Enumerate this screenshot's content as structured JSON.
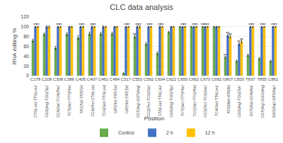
{
  "chart_data": {
    "type": "bar",
    "title": "CLC data analysis",
    "x_label": "Position",
    "y_label": "RNA editing %",
    "categories": [
      "C178",
      "C208",
      "C308",
      "C386",
      "C405",
      "C407",
      "C461",
      "C484",
      "C517",
      "C553",
      "C592",
      "C604",
      "C622",
      "C650",
      "C662",
      "C673",
      "C692",
      "G807",
      "C820",
      "T837",
      "T855",
      "C861"
    ],
    "sublabels": [
      "CTG(Leu)-TTG(Leu)",
      "CGG(Arg)-TGG(Trp)",
      "CCA(Ser)-TCA(Phe)",
      "TCT(Ser)-TTT(Phe)",
      "TAC(Tyr)-TAT(Tyr)",
      "CCA(Pro)-CTA(Leu)",
      "TCG(Ser)-TTG(Leu)",
      "CAT(His)-TAT(Tyr)",
      "CAT(His)-TAT(Tyr)",
      "CGT(Arg)-GGT(Ang)",
      "CCG(Pro)-TCG(Ser)",
      "CTA(Leu)-TTA(Leu)",
      "CGG(Arg)-TGG(Trp)",
      "TCT(Ser)-TTT(Phe)",
      "TCC(Ser)-TTC(Phe)",
      "CCG(Pro)-TCG(Ser)",
      "TCA(Ser)-TTA(Leu)",
      "ATG(Met)-ATA(Ile)",
      "CGG(Arg)-TGG(Tyr)",
      "GCT(Ala)-GCA(Ala)",
      "CGT(Arg)-GGC(Ang)",
      "GAC(Asp)-GAT(Asp)"
    ],
    "series": [
      {
        "name": "Control",
        "color": "#6aaa4b",
        "values": [
          72,
          85,
          57,
          85,
          78,
          86,
          86,
          86,
          5,
          80,
          65,
          46,
          89,
          100,
          100,
          100,
          100,
          38,
          30,
          42,
          35,
          30
        ],
        "errors": [
          3,
          2,
          3,
          3,
          4,
          3,
          3,
          3,
          1,
          3,
          3,
          3,
          2,
          1,
          1,
          1,
          1,
          2,
          2,
          2,
          2,
          2
        ],
        "annotations": [
          null,
          null,
          null,
          null,
          null,
          null,
          null,
          null,
          null,
          "**",
          null,
          null,
          null,
          null,
          null,
          "**",
          null,
          "**",
          null,
          null,
          null,
          null
        ]
      },
      {
        "name": "2 h",
        "color": "#4472c4",
        "values": [
          100,
          100,
          100,
          100,
          100,
          100,
          100,
          100,
          100,
          100,
          100,
          100,
          100,
          100,
          100,
          100,
          100,
          82,
          65,
          100,
          100,
          100
        ],
        "errors": [
          1,
          2,
          1,
          1,
          1,
          2,
          2,
          1,
          1,
          2,
          1,
          2,
          1,
          1,
          1,
          1,
          1,
          3,
          3,
          1,
          1,
          1
        ],
        "annotations": [
          "**",
          null,
          "**",
          null,
          "**",
          "**",
          null,
          null,
          "**",
          "**",
          "**",
          "**",
          null,
          "**",
          "**",
          "**",
          null,
          "**",
          "**",
          "**",
          "**",
          "**"
        ]
      },
      {
        "name": "12 h",
        "color": "#ffc000",
        "values": [
          100,
          100,
          100,
          100,
          100,
          100,
          100,
          100,
          100,
          100,
          100,
          100,
          100,
          100,
          100,
          100,
          100,
          80,
          70,
          100,
          100,
          100
        ],
        "errors": [
          1,
          2,
          1,
          1,
          1,
          1,
          1,
          1,
          1,
          2,
          1,
          1,
          1,
          1,
          1,
          1,
          1,
          3,
          3,
          1,
          1,
          1
        ],
        "annotations": [
          "**",
          null,
          "**",
          null,
          "**",
          "**",
          null,
          null,
          "**",
          "**",
          "**",
          "**",
          null,
          "**",
          "**",
          "**",
          null,
          "**",
          "**",
          "**",
          "**",
          "**"
        ]
      }
    ],
    "ylim": [
      0,
      120
    ],
    "yticks": [
      0,
      20,
      40,
      60,
      80,
      100,
      120
    ],
    "grid": true,
    "legend": "bottom"
  }
}
